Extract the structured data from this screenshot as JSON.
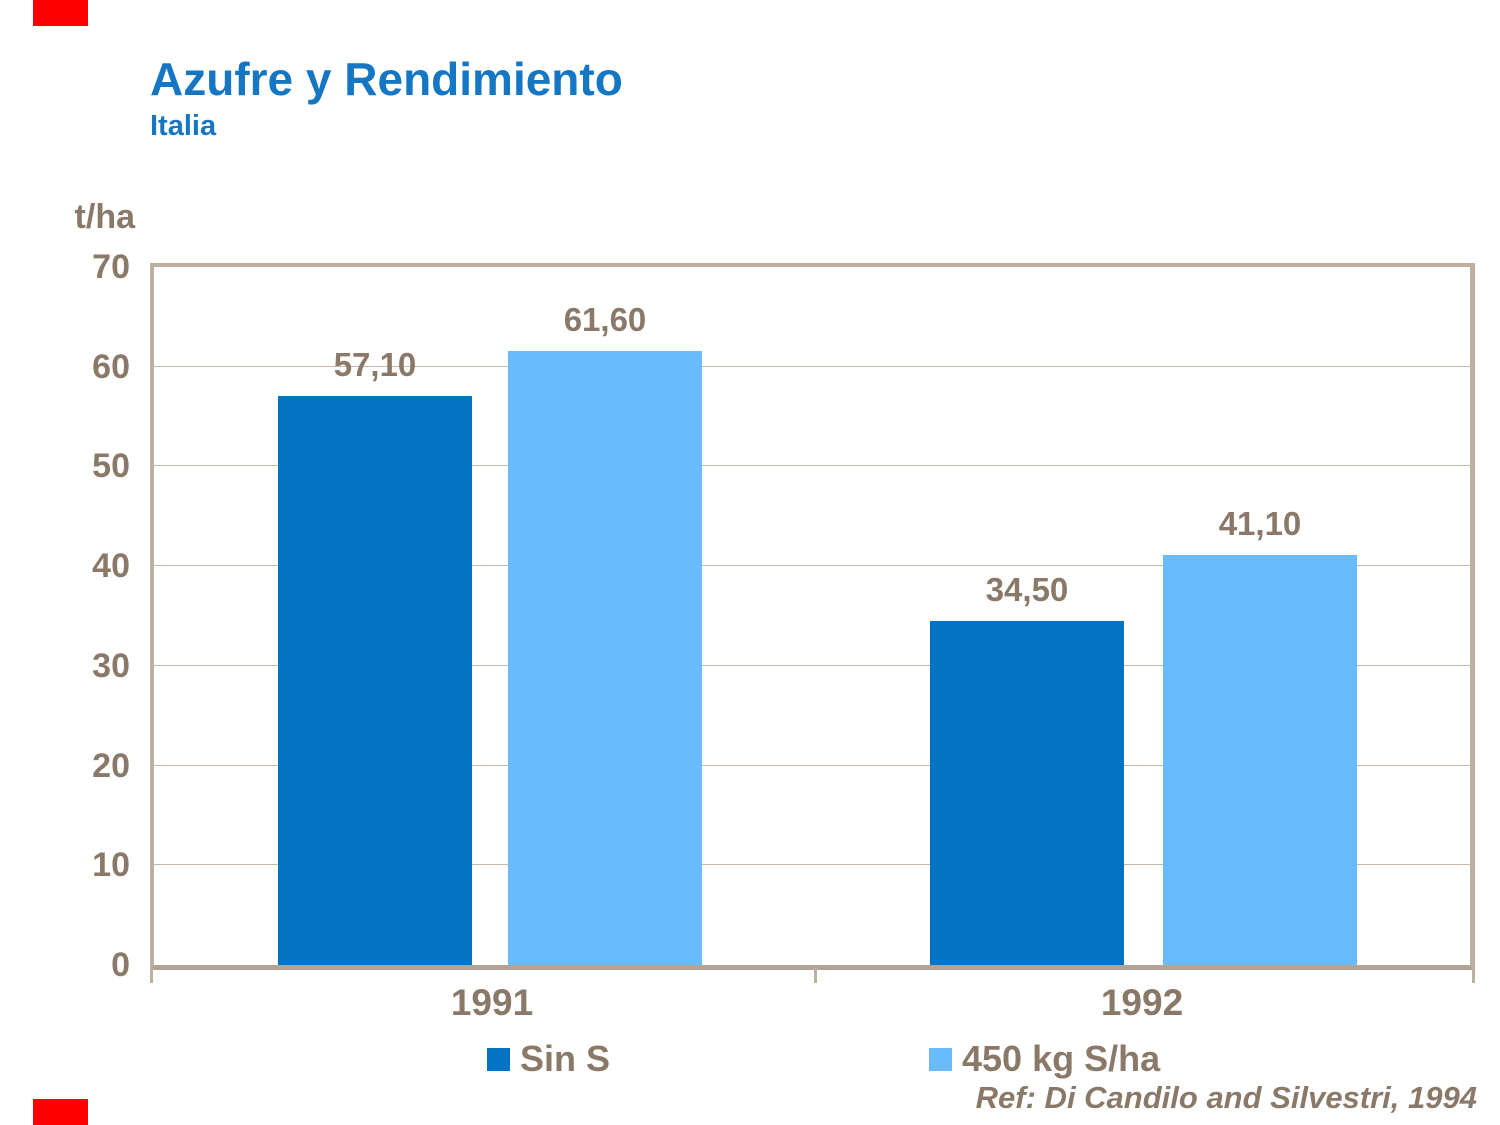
{
  "colors": {
    "title_blue": "#1577c4",
    "label_brown": "#8a7968",
    "axis_frame_tan": "#beb0a0",
    "grid_tan": "#c6b9a8",
    "corner_mark_red": "#ff0000",
    "series_dark_blue": "#0473c4",
    "series_light_blue": "#69bbfb"
  },
  "header": {
    "title": "Azufre y Rendimiento",
    "subtitle": "Italia"
  },
  "chart_data": {
    "type": "bar",
    "title": "Azufre y Rendimiento",
    "subtitle": "Italia",
    "unit_label": "t/ha",
    "categories": [
      "1991",
      "1992"
    ],
    "series": [
      {
        "name": "Sin S",
        "color": "#0473c4",
        "values": [
          57.1,
          34.5
        ],
        "data_labels": [
          "57,10",
          "34,50"
        ]
      },
      {
        "name": "450 kg S/ha",
        "color": "#69bbfb",
        "values": [
          61.6,
          41.1
        ],
        "data_labels": [
          "61,60",
          "41,10"
        ]
      }
    ],
    "ylim": [
      0,
      70
    ],
    "yticks": [
      0,
      10,
      20,
      30,
      40,
      50,
      60,
      70
    ],
    "grid": true,
    "legend_position": "bottom"
  },
  "footer": {
    "reference": "Ref: Di Candilo and Silvestri, 1994"
  }
}
